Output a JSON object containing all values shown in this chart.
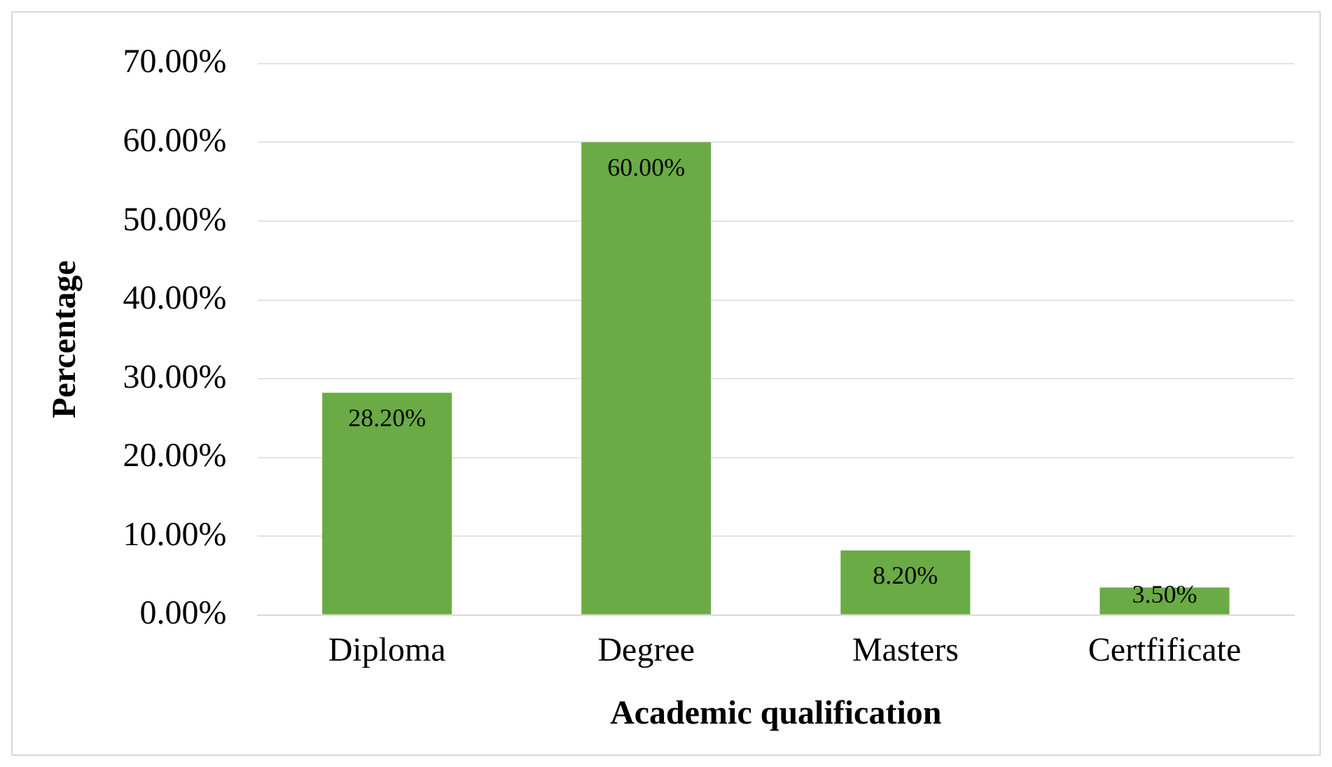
{
  "chart_data": {
    "type": "bar",
    "xlabel": "Academic qualification",
    "ylabel": "Percentage",
    "categories": [
      "Diploma",
      "Degree",
      "Masters",
      "Certfificate"
    ],
    "values": [
      28.2,
      60.0,
      8.2,
      3.5
    ],
    "value_labels": [
      "28.20%",
      "60.00%",
      "8.20%",
      "3.50%"
    ],
    "color": "#6aab45",
    "ylim": [
      0,
      70
    ],
    "yticks": [
      {
        "value": 0,
        "label": "0.00%"
      },
      {
        "value": 10,
        "label": "10.00%"
      },
      {
        "value": 20,
        "label": "20.00%"
      },
      {
        "value": 30,
        "label": "30.00%"
      },
      {
        "value": 40,
        "label": "40.00%"
      },
      {
        "value": 50,
        "label": "50.00%"
      },
      {
        "value": 60,
        "label": "60.00%"
      },
      {
        "value": 70,
        "label": "70.00%"
      }
    ],
    "grid": "y"
  }
}
